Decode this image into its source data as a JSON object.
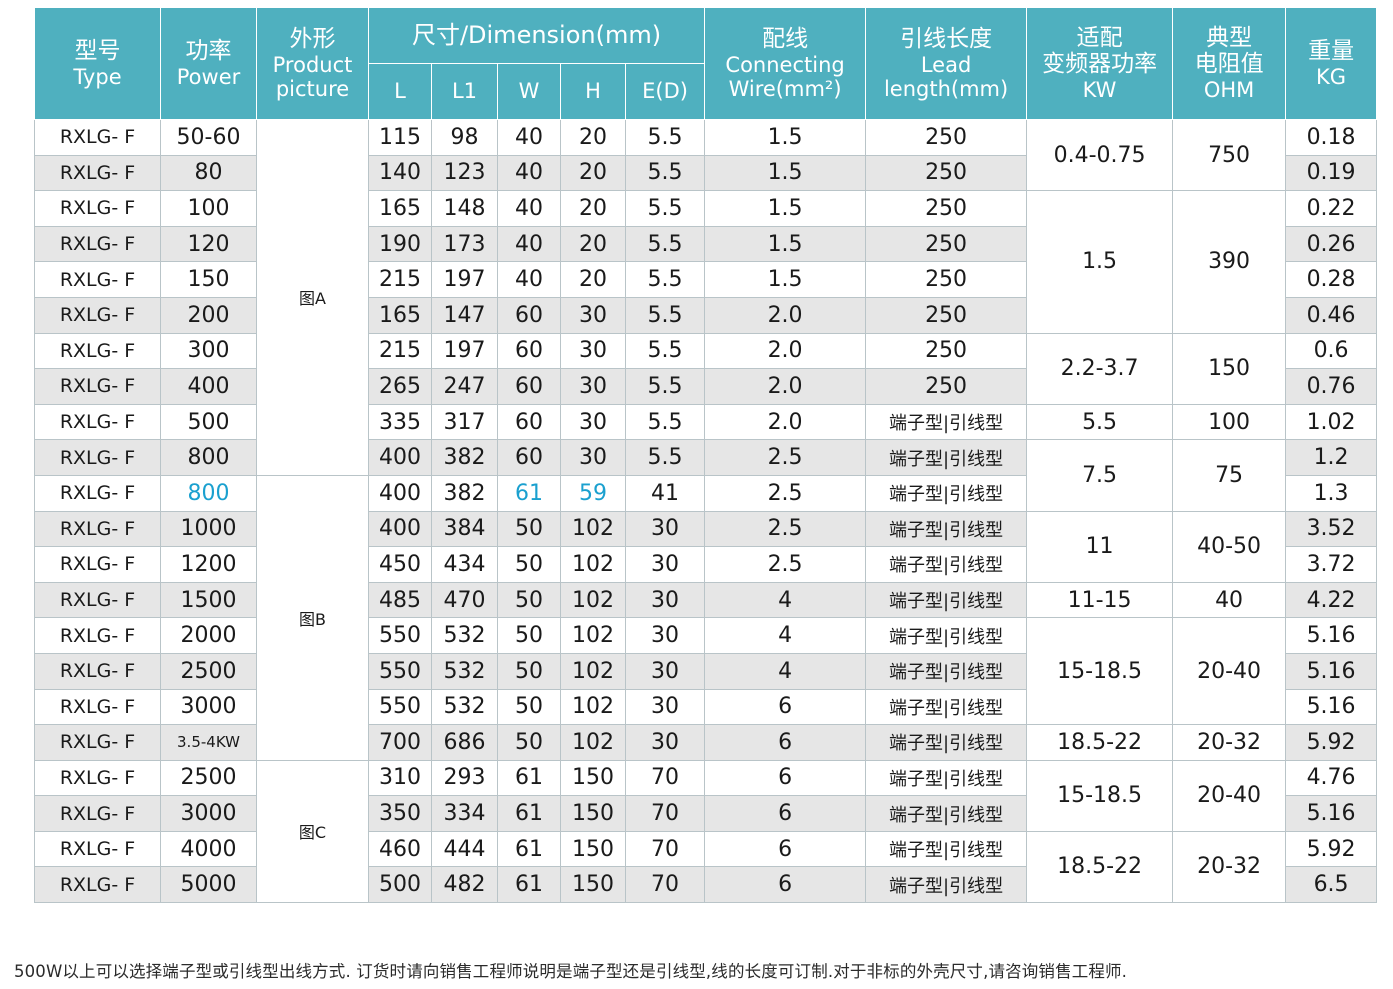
{
  "header": {
    "type": {
      "cn": "型号",
      "en": "Type"
    },
    "power": {
      "cn": "功率",
      "en": "Power"
    },
    "picture": {
      "cn": "外形",
      "en1": "Product",
      "en2": "picture"
    },
    "dimension": "尺寸/Dimension(mm)",
    "dims": [
      "L",
      "L1",
      "W",
      "H",
      "E(D)"
    ],
    "wire": {
      "cn": "配线",
      "en1": "Connecting",
      "en2": "Wire(mm²)"
    },
    "lead": {
      "cn": "引线长度",
      "en1": "Lead",
      "en2": "length(mm)"
    },
    "inverter": {
      "cn1": "适配",
      "cn2": "变频器功率",
      "en": "KW"
    },
    "resist": {
      "cn1": "典型",
      "cn2": "电阻值",
      "en": "OHM"
    },
    "weight": {
      "cn": "重量",
      "en": "KG"
    }
  },
  "pictures": [
    "图A",
    "图B",
    "图C"
  ],
  "rows": [
    {
      "model": "RXLG- F",
      "power": "50-60",
      "L": "115",
      "L1": "98",
      "W": "40",
      "H": "20",
      "E": "5.5",
      "wire": "1.5",
      "lead": "250",
      "weight": "0.18"
    },
    {
      "model": "RXLG- F",
      "power": "80",
      "L": "140",
      "L1": "123",
      "W": "40",
      "H": "20",
      "E": "5.5",
      "wire": "1.5",
      "lead": "250",
      "weight": "0.19"
    },
    {
      "model": "RXLG- F",
      "power": "100",
      "L": "165",
      "L1": "148",
      "W": "40",
      "H": "20",
      "E": "5.5",
      "wire": "1.5",
      "lead": "250",
      "weight": "0.22"
    },
    {
      "model": "RXLG- F",
      "power": "120",
      "L": "190",
      "L1": "173",
      "W": "40",
      "H": "20",
      "E": "5.5",
      "wire": "1.5",
      "lead": "250",
      "weight": "0.26"
    },
    {
      "model": "RXLG- F",
      "power": "150",
      "L": "215",
      "L1": "197",
      "W": "40",
      "H": "20",
      "E": "5.5",
      "wire": "1.5",
      "lead": "250",
      "weight": "0.28"
    },
    {
      "model": "RXLG- F",
      "power": "200",
      "L": "165",
      "L1": "147",
      "W": "60",
      "H": "30",
      "E": "5.5",
      "wire": "2.0",
      "lead": "250",
      "weight": "0.46"
    },
    {
      "model": "RXLG- F",
      "power": "300",
      "L": "215",
      "L1": "197",
      "W": "60",
      "H": "30",
      "E": "5.5",
      "wire": "2.0",
      "lead": "250",
      "weight": "0.6"
    },
    {
      "model": "RXLG- F",
      "power": "400",
      "L": "265",
      "L1": "247",
      "W": "60",
      "H": "30",
      "E": "5.5",
      "wire": "2.0",
      "lead": "250",
      "weight": "0.76"
    },
    {
      "model": "RXLG- F",
      "power": "500",
      "L": "335",
      "L1": "317",
      "W": "60",
      "H": "30",
      "E": "5.5",
      "wire": "2.0",
      "lead": "端子型|引线型",
      "weight": "1.02"
    },
    {
      "model": "RXLG- F",
      "power": "800",
      "L": "400",
      "L1": "382",
      "W": "60",
      "H": "30",
      "E": "5.5",
      "wire": "2.5",
      "lead": "端子型|引线型",
      "weight": "1.2"
    },
    {
      "model": "RXLG- F",
      "power": "800",
      "L": "400",
      "L1": "382",
      "W": "61",
      "H": "59",
      "E": "41",
      "wire": "2.5",
      "lead": "端子型|引线型",
      "weight": "1.3"
    },
    {
      "model": "RXLG- F",
      "power": "1000",
      "L": "400",
      "L1": "384",
      "W": "50",
      "H": "102",
      "E": "30",
      "wire": "2.5",
      "lead": "端子型|引线型",
      "weight": "3.52"
    },
    {
      "model": "RXLG- F",
      "power": "1200",
      "L": "450",
      "L1": "434",
      "W": "50",
      "H": "102",
      "E": "30",
      "wire": "2.5",
      "lead": "端子型|引线型",
      "weight": "3.72"
    },
    {
      "model": "RXLG- F",
      "power": "1500",
      "L": "485",
      "L1": "470",
      "W": "50",
      "H": "102",
      "E": "30",
      "wire": "4",
      "lead": "端子型|引线型",
      "weight": "4.22"
    },
    {
      "model": "RXLG- F",
      "power": "2000",
      "L": "550",
      "L1": "532",
      "W": "50",
      "H": "102",
      "E": "30",
      "wire": "4",
      "lead": "端子型|引线型",
      "weight": "5.16"
    },
    {
      "model": "RXLG- F",
      "power": "2500",
      "L": "550",
      "L1": "532",
      "W": "50",
      "H": "102",
      "E": "30",
      "wire": "4",
      "lead": "端子型|引线型",
      "weight": "5.16"
    },
    {
      "model": "RXLG- F",
      "power": "3000",
      "L": "550",
      "L1": "532",
      "W": "50",
      "H": "102",
      "E": "30",
      "wire": "6",
      "lead": "端子型|引线型",
      "weight": "5.16"
    },
    {
      "model": "RXLG- F",
      "power": "3.5-4KW",
      "L": "700",
      "L1": "686",
      "W": "50",
      "H": "102",
      "E": "30",
      "wire": "6",
      "lead": "端子型|引线型",
      "weight": "5.92"
    },
    {
      "model": "RXLG- F",
      "power": "2500",
      "L": "310",
      "L1": "293",
      "W": "61",
      "H": "150",
      "E": "70",
      "wire": "6",
      "lead": "端子型|引线型",
      "weight": "4.76"
    },
    {
      "model": "RXLG- F",
      "power": "3000",
      "L": "350",
      "L1": "334",
      "W": "61",
      "H": "150",
      "E": "70",
      "wire": "6",
      "lead": "端子型|引线型",
      "weight": "5.16"
    },
    {
      "model": "RXLG- F",
      "power": "4000",
      "L": "460",
      "L1": "444",
      "W": "61",
      "H": "150",
      "E": "70",
      "wire": "6",
      "lead": "端子型|引线型",
      "weight": "5.92"
    },
    {
      "model": "RXLG- F",
      "power": "5000",
      "L": "500",
      "L1": "482",
      "W": "61",
      "H": "150",
      "E": "70",
      "wire": "6",
      "lead": "端子型|引线型",
      "weight": "6.5"
    }
  ],
  "inverter_groups": [
    "0.4-0.75",
    "1.5",
    "2.2-3.7",
    "5.5",
    "7.5",
    "11",
    "11-15",
    "15-18.5",
    "18.5-22",
    "15-18.5",
    "18.5-22"
  ],
  "resistance_groups": [
    "750",
    "390",
    "150",
    "100",
    "75",
    "40-50",
    "40",
    "20-40",
    "20-32",
    "20-40",
    "20-32"
  ],
  "colors": {
    "header_bg": "#4fb0bf",
    "shade": "#e6e6e6",
    "highlight": "#1aa0cf"
  },
  "footnote": "500W以上可以选择端子型或引线型出线方式. 订货时请向销售工程师说明是端子型还是引线型,线的长度可订制.对于非标的外壳尺寸,请咨询销售工程师."
}
